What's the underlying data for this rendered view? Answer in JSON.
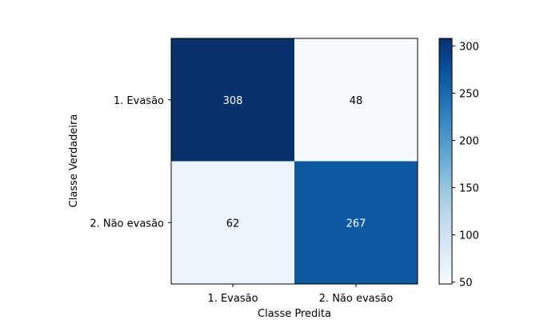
{
  "chart_data": {
    "type": "heatmap",
    "title": "",
    "xlabel": "Classe Predita",
    "ylabel": "Classe Verdadeira",
    "x_categories": [
      "1. Evasão",
      "2. Não evasão"
    ],
    "y_categories": [
      "1. Evasão",
      "2. Não evasão"
    ],
    "values": [
      [
        308,
        48
      ],
      [
        62,
        267
      ]
    ],
    "value_labels": [
      [
        "308",
        "48"
      ],
      [
        "62",
        "267"
      ]
    ],
    "colormap": "Blues",
    "colorbar": {
      "range": [
        48,
        308
      ],
      "ticks": [
        50,
        100,
        150,
        200,
        250,
        300
      ],
      "tick_labels": [
        "50",
        "100",
        "150",
        "200",
        "250",
        "300"
      ]
    },
    "grid": false
  }
}
